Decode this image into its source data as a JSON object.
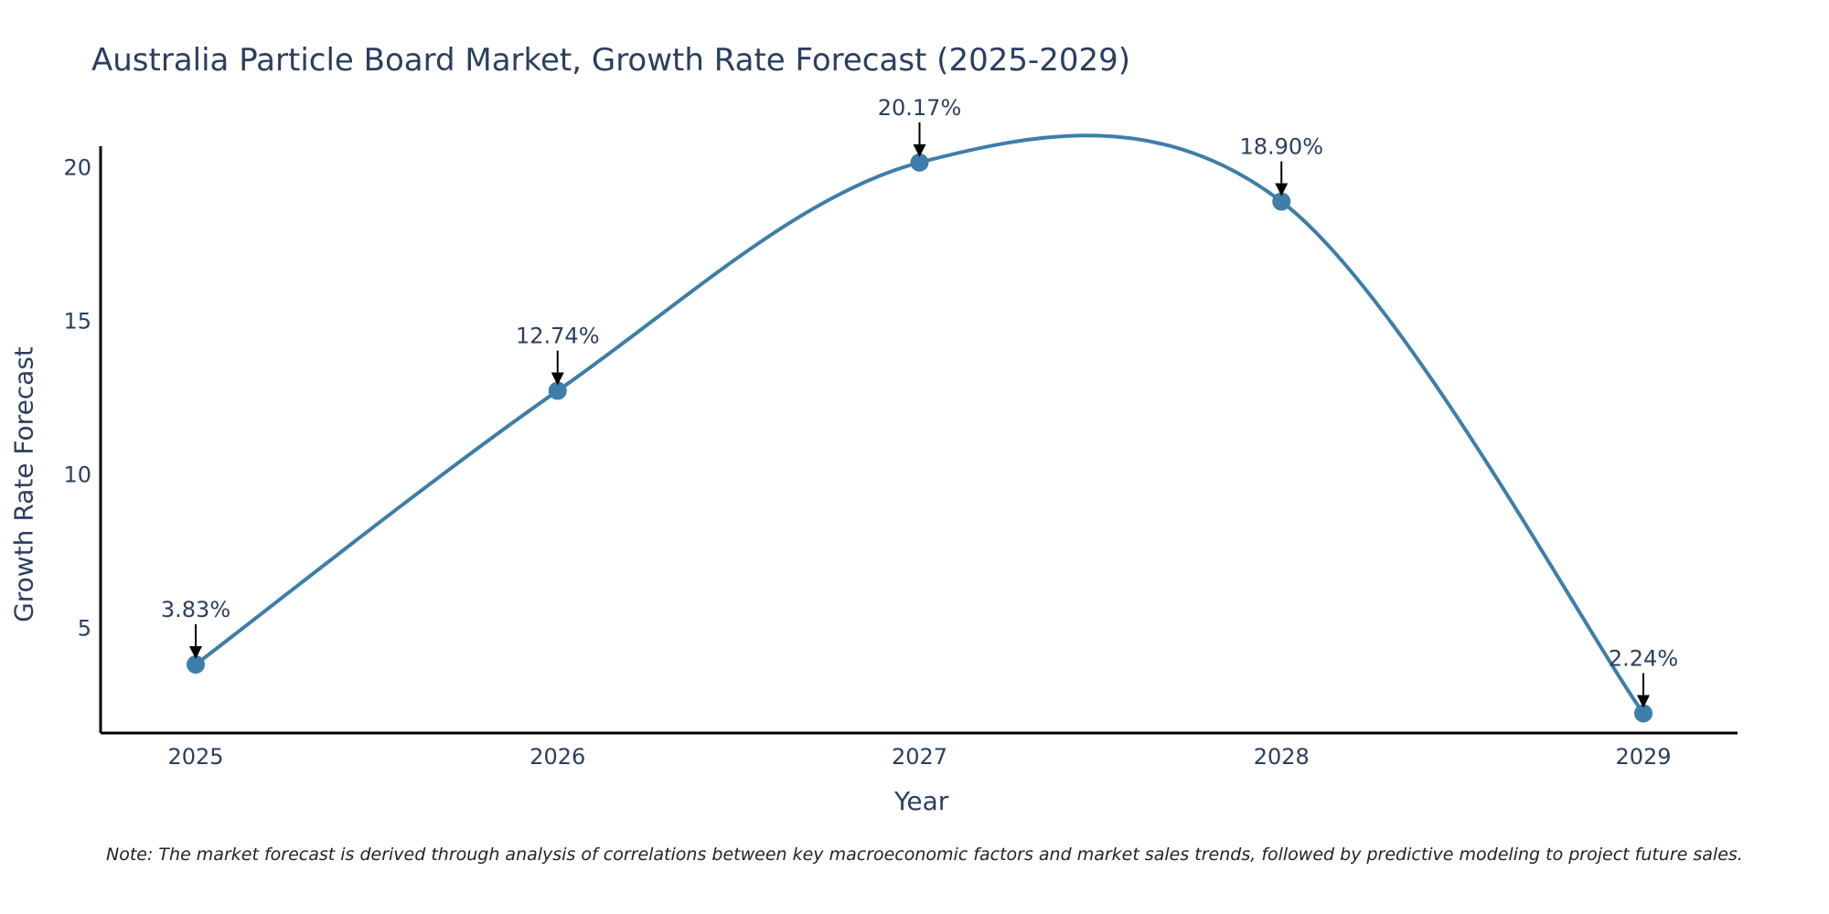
{
  "chart_data": {
    "type": "line",
    "title": "Australia Particle Board Market, Growth Rate Forecast (2025-2029)",
    "xlabel": "Year",
    "ylabel": "Growth Rate Forecast",
    "categories": [
      "2025",
      "2026",
      "2027",
      "2028",
      "2029"
    ],
    "values": [
      3.83,
      12.74,
      20.17,
      18.9,
      2.24
    ],
    "data_labels": [
      "3.83%",
      "12.74%",
      "20.17%",
      "18.90%",
      "2.24%"
    ],
    "y_ticks": [
      "5",
      "10",
      "15",
      "20"
    ],
    "ylim": [
      1.6,
      20.7
    ],
    "grid": false,
    "line_shape": "spline",
    "series_color": "#3d7eaa",
    "note": "Note: The market forecast is derived through analysis of correlations between key macroeconomic factors and market sales trends, followed by predictive modeling to project future sales."
  }
}
